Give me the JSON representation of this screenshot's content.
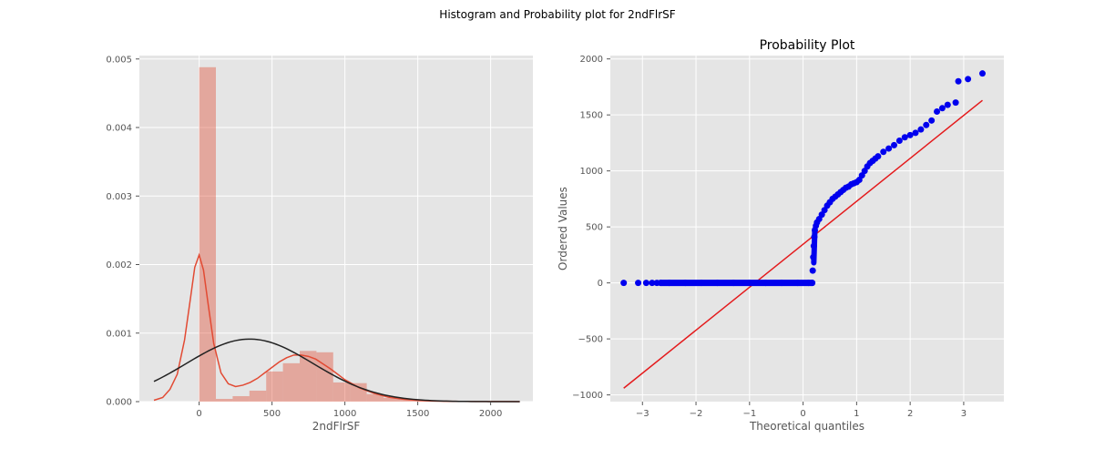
{
  "figure": {
    "suptitle": "Histogram and Probability plot for 2ndFlrSF"
  },
  "colors": {
    "panel_bg": "#e5e5e5",
    "grid": "#ffffff",
    "hist_bar": "#e24a33",
    "kde_line": "#e24a33",
    "normal_fit_line": "#222222",
    "qq_points": "#0000ee",
    "qq_line": "#e41a1c"
  },
  "chart_data": [
    {
      "type": "bar",
      "title": "",
      "xlabel": "2ndFlrSF",
      "ylabel": "",
      "xlim": [
        -410,
        2290
      ],
      "ylim": [
        0,
        0.00505
      ],
      "x_ticks": [
        0,
        500,
        1000,
        1500,
        2000
      ],
      "x_tick_labels": [
        "0",
        "500",
        "1000",
        "1500",
        "2000"
      ],
      "y_ticks": [
        0,
        0.001,
        0.002,
        0.003,
        0.004,
        0.005
      ],
      "y_tick_labels": [
        "0.000",
        "0.001",
        "0.002",
        "0.003",
        "0.004",
        "0.005"
      ],
      "grid": true,
      "histogram": {
        "bin_edges": [
          0,
          115,
          230,
          345,
          460,
          575,
          690,
          805,
          920,
          1035,
          1150,
          1265,
          1380,
          1495,
          1610,
          1725,
          1840,
          1955,
          2070
        ],
        "density": [
          0.00488,
          4e-05,
          8e-05,
          0.00016,
          0.00044,
          0.00056,
          0.00074,
          0.00072,
          0.00028,
          0.00027,
          0.00011,
          5.5e-05,
          3e-05,
          2e-05,
          1e-05,
          6e-06,
          4e-06,
          2e-06
        ]
      },
      "kde": {
        "x": [
          -310,
          -250,
          -200,
          -150,
          -100,
          -60,
          -30,
          0,
          30,
          60,
          100,
          150,
          200,
          250,
          300,
          350,
          400,
          450,
          500,
          550,
          600,
          650,
          700,
          750,
          800,
          850,
          900,
          950,
          1000,
          1100,
          1200,
          1300,
          1400,
          1500,
          1600,
          1700,
          1800,
          1900,
          2000,
          2100,
          2200
        ],
        "y": [
          2e-05,
          6e-05,
          0.00018,
          0.0004,
          0.0009,
          0.0015,
          0.00196,
          0.00214,
          0.00192,
          0.00145,
          0.00085,
          0.00042,
          0.00026,
          0.00022,
          0.00024,
          0.00028,
          0.00034,
          0.00042,
          0.0005,
          0.00058,
          0.00064,
          0.00068,
          0.00068,
          0.00066,
          0.00062,
          0.00055,
          0.00048,
          0.0004,
          0.00032,
          0.0002,
          0.00012,
          6.5e-05,
          3.5e-05,
          1.8e-05,
          9e-06,
          5e-06,
          3e-06,
          2e-06,
          1e-06,
          1e-06,
          5e-07
        ]
      },
      "normal_fit": {
        "mean": 347,
        "std": 437,
        "x_range": [
          -310,
          2200
        ]
      }
    },
    {
      "type": "scatter",
      "title": "Probability Plot",
      "xlabel": "Theoretical quantiles",
      "ylabel": "Ordered Values",
      "xlim": [
        -3.6,
        3.75
      ],
      "ylim": [
        -1060,
        2030
      ],
      "x_ticks": [
        -3,
        -2,
        -1,
        0,
        1,
        2,
        3
      ],
      "x_tick_labels": [
        "−3",
        "−2",
        "−1",
        "0",
        "1",
        "2",
        "3"
      ],
      "y_ticks": [
        -1000,
        -500,
        0,
        500,
        1000,
        1500,
        2000
      ],
      "y_tick_labels": [
        "−1000",
        "−500",
        "0",
        "500",
        "1000",
        "1500",
        "2000"
      ],
      "grid": true,
      "fit_line": {
        "x": [
          -3.35,
          3.35
        ],
        "y": [
          -940,
          1630
        ]
      },
      "points": {
        "x": [
          -3.35,
          -3.08,
          -2.93,
          -2.82,
          -2.73,
          -2.66,
          -2.5,
          -2.2,
          -1.9,
          -1.6,
          -1.3,
          -1.0,
          -0.7,
          -0.4,
          -0.1,
          0.1,
          0.17,
          0.18,
          0.19,
          0.2,
          0.21,
          0.22,
          0.24,
          0.26,
          0.3,
          0.35,
          0.4,
          0.45,
          0.5,
          0.55,
          0.6,
          0.65,
          0.7,
          0.75,
          0.8,
          0.85,
          0.9,
          0.95,
          1.0,
          1.05,
          1.1,
          1.15,
          1.2,
          1.25,
          1.3,
          1.35,
          1.4,
          1.5,
          1.6,
          1.7,
          1.8,
          1.9,
          2.0,
          2.1,
          2.2,
          2.3,
          2.4,
          2.5,
          2.6,
          2.7,
          2.85,
          2.9,
          3.08,
          3.35
        ],
        "y": [
          0,
          0,
          0,
          0,
          0,
          0,
          0,
          0,
          0,
          0,
          0,
          0,
          0,
          0,
          0,
          0,
          0,
          110,
          230,
          330,
          410,
          470,
          510,
          540,
          570,
          610,
          650,
          690,
          720,
          750,
          770,
          790,
          810,
          830,
          850,
          860,
          880,
          890,
          900,
          920,
          960,
          1000,
          1040,
          1070,
          1090,
          1110,
          1130,
          1170,
          1200,
          1230,
          1270,
          1300,
          1320,
          1340,
          1370,
          1410,
          1450,
          1530,
          1560,
          1590,
          1610,
          1800,
          1820,
          1870
        ]
      }
    }
  ]
}
